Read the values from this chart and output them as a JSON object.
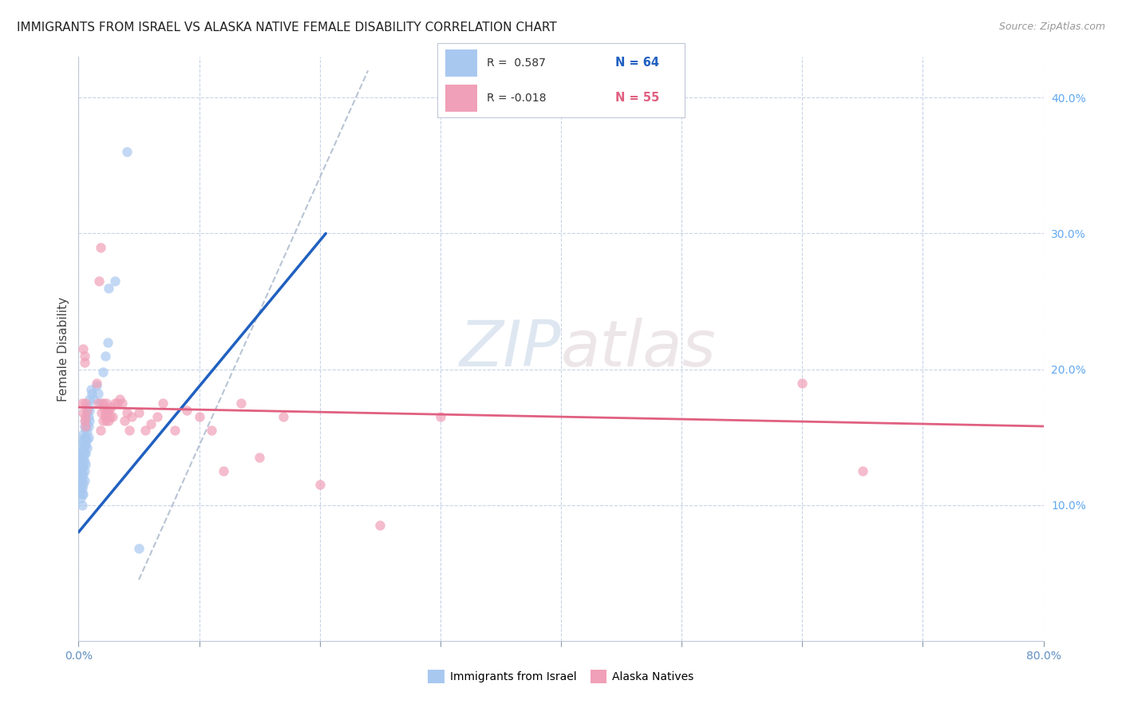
{
  "title": "IMMIGRANTS FROM ISRAEL VS ALASKA NATIVE FEMALE DISABILITY CORRELATION CHART",
  "source": "Source: ZipAtlas.com",
  "ylabel": "Female Disability",
  "watermark_zip": "ZIP",
  "watermark_atlas": "atlas",
  "legend_blue_r": "R =  0.587",
  "legend_blue_n": "N = 64",
  "legend_pink_r": "R = -0.018",
  "legend_pink_n": "N = 55",
  "blue_color": "#a8c8f0",
  "pink_color": "#f0a0b8",
  "blue_line_color": "#2060c0",
  "pink_line_color": "#e06080",
  "trendline_gray_color": "#b8c4d4",
  "background_color": "#ffffff",
  "grid_color": "#c8d4e8",
  "right_axis_color": "#60a8f0",
  "xlim": [
    0.0,
    0.8
  ],
  "ylim": [
    0.0,
    0.43
  ],
  "yticks_right": [
    0.1,
    0.2,
    0.3,
    0.4
  ],
  "ytick_labels_right": [
    "10.0%",
    "20.0%",
    "30.0%",
    "40.0%"
  ],
  "xticks": [
    0.0,
    0.1,
    0.2,
    0.3,
    0.4,
    0.5,
    0.6,
    0.7,
    0.8
  ],
  "blue_scatter_x": [
    0.001,
    0.001,
    0.001,
    0.002,
    0.002,
    0.002,
    0.002,
    0.002,
    0.002,
    0.003,
    0.003,
    0.003,
    0.003,
    0.003,
    0.003,
    0.003,
    0.003,
    0.003,
    0.004,
    0.004,
    0.004,
    0.004,
    0.004,
    0.004,
    0.004,
    0.004,
    0.005,
    0.005,
    0.005,
    0.005,
    0.005,
    0.005,
    0.005,
    0.006,
    0.006,
    0.006,
    0.006,
    0.006,
    0.006,
    0.007,
    0.007,
    0.007,
    0.007,
    0.007,
    0.008,
    0.008,
    0.008,
    0.008,
    0.009,
    0.009,
    0.009,
    0.01,
    0.011,
    0.012,
    0.015,
    0.016,
    0.018,
    0.02,
    0.022,
    0.024,
    0.025,
    0.03,
    0.04,
    0.05
  ],
  "blue_scatter_y": [
    0.135,
    0.128,
    0.122,
    0.14,
    0.132,
    0.125,
    0.118,
    0.112,
    0.105,
    0.148,
    0.142,
    0.136,
    0.13,
    0.124,
    0.118,
    0.112,
    0.108,
    0.1,
    0.152,
    0.146,
    0.14,
    0.134,
    0.128,
    0.122,
    0.115,
    0.108,
    0.158,
    0.15,
    0.144,
    0.138,
    0.132,
    0.125,
    0.118,
    0.162,
    0.156,
    0.15,
    0.144,
    0.138,
    0.13,
    0.168,
    0.16,
    0.154,
    0.148,
    0.142,
    0.172,
    0.165,
    0.158,
    0.15,
    0.178,
    0.17,
    0.162,
    0.185,
    0.182,
    0.178,
    0.188,
    0.182,
    0.175,
    0.198,
    0.21,
    0.22,
    0.26,
    0.265,
    0.36,
    0.068
  ],
  "pink_scatter_x": [
    0.003,
    0.004,
    0.004,
    0.005,
    0.005,
    0.005,
    0.006,
    0.006,
    0.006,
    0.007,
    0.015,
    0.016,
    0.017,
    0.018,
    0.018,
    0.019,
    0.02,
    0.02,
    0.021,
    0.022,
    0.022,
    0.023,
    0.023,
    0.024,
    0.025,
    0.025,
    0.026,
    0.027,
    0.028,
    0.03,
    0.032,
    0.034,
    0.036,
    0.038,
    0.04,
    0.042,
    0.044,
    0.05,
    0.055,
    0.06,
    0.065,
    0.07,
    0.08,
    0.09,
    0.1,
    0.11,
    0.12,
    0.135,
    0.15,
    0.17,
    0.2,
    0.25,
    0.3,
    0.6,
    0.65
  ],
  "pink_scatter_y": [
    0.175,
    0.168,
    0.215,
    0.162,
    0.21,
    0.205,
    0.158,
    0.175,
    0.165,
    0.17,
    0.19,
    0.175,
    0.265,
    0.155,
    0.29,
    0.168,
    0.162,
    0.175,
    0.172,
    0.168,
    0.165,
    0.175,
    0.162,
    0.168,
    0.162,
    0.17,
    0.165,
    0.172,
    0.165,
    0.175,
    0.175,
    0.178,
    0.175,
    0.162,
    0.168,
    0.155,
    0.165,
    0.168,
    0.155,
    0.16,
    0.165,
    0.175,
    0.155,
    0.17,
    0.165,
    0.155,
    0.125,
    0.175,
    0.135,
    0.165,
    0.115,
    0.085,
    0.165,
    0.19,
    0.125
  ],
  "blue_trend_x": [
    0.0,
    0.205
  ],
  "blue_trend_y": [
    0.08,
    0.3
  ],
  "pink_trend_x": [
    0.0,
    0.8
  ],
  "pink_trend_y": [
    0.172,
    0.158
  ],
  "gray_trend_x": [
    0.05,
    0.24
  ],
  "gray_trend_y": [
    0.045,
    0.42
  ],
  "legend_bottom_labels": [
    "Immigrants from Israel",
    "Alaska Natives"
  ]
}
